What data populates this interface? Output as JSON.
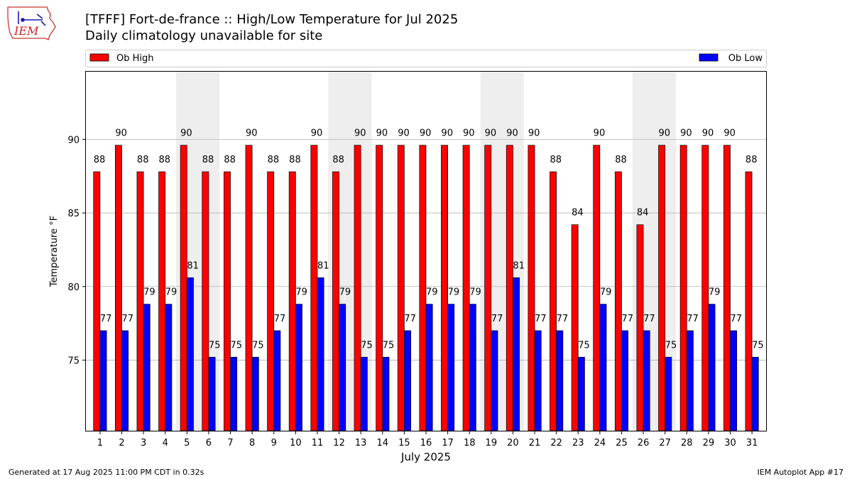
{
  "header": {
    "title": "[TFFF] Fort-de-france :: High/Low Temperature for Jul 2025",
    "subtitle": "Daily climatology unavailable for site"
  },
  "logo": {
    "text": "IEM",
    "icon": "iem-iowa-logo-icon"
  },
  "footer": {
    "generated": "Generated at 17 Aug 2025 11:00 PM CDT in 0.32s",
    "app": "IEM Autoplot App #17"
  },
  "chart_data": {
    "type": "bar",
    "categories": [
      "1",
      "2",
      "3",
      "4",
      "5",
      "6",
      "7",
      "8",
      "9",
      "10",
      "11",
      "12",
      "13",
      "14",
      "15",
      "16",
      "17",
      "18",
      "19",
      "20",
      "21",
      "22",
      "23",
      "24",
      "25",
      "26",
      "27",
      "28",
      "29",
      "30",
      "31"
    ],
    "series": [
      {
        "name": "Ob High",
        "color": "#ff0000",
        "values": [
          87.8,
          89.6,
          87.8,
          87.8,
          89.6,
          87.8,
          87.8,
          89.6,
          87.8,
          87.8,
          89.6,
          87.8,
          89.6,
          89.6,
          89.6,
          89.6,
          89.6,
          89.6,
          89.6,
          89.6,
          89.6,
          87.8,
          84.2,
          89.6,
          87.8,
          84.2,
          89.6,
          89.6,
          89.6,
          89.6,
          87.8
        ],
        "labels": [
          "88",
          "90",
          "88",
          "88",
          "90",
          "88",
          "88",
          "90",
          "88",
          "88",
          "90",
          "88",
          "90",
          "90",
          "90",
          "90",
          "90",
          "90",
          "90",
          "90",
          "90",
          "88",
          "84",
          "90",
          "88",
          "84",
          "90",
          "90",
          "90",
          "90",
          "88"
        ]
      },
      {
        "name": "Ob Low",
        "color": "#0000ff",
        "values": [
          77.0,
          77.0,
          78.8,
          78.8,
          80.6,
          75.2,
          75.2,
          75.2,
          77.0,
          78.8,
          80.6,
          78.8,
          75.2,
          75.2,
          77.0,
          78.8,
          78.8,
          78.8,
          77.0,
          80.6,
          77.0,
          77.0,
          75.2,
          78.8,
          77.0,
          77.0,
          75.2,
          77.0,
          78.8,
          77.0,
          75.2
        ],
        "labels": [
          "77",
          "77",
          "79",
          "79",
          "81",
          "75",
          "75",
          "75",
          "77",
          "79",
          "81",
          "79",
          "75",
          "75",
          "77",
          "79",
          "79",
          "79",
          "77",
          "81",
          "77",
          "77",
          "75",
          "79",
          "77",
          "77",
          "75",
          "77",
          "79",
          "77",
          "75"
        ]
      }
    ],
    "weekend_days": [
      5,
      6,
      12,
      13,
      19,
      20,
      26,
      27
    ],
    "ylim": [
      70.2,
      94.6
    ],
    "yticks": [
      75,
      80,
      85,
      90
    ],
    "xlabel": "July 2025",
    "ylabel": "Temperature °F",
    "grid": "horizontal",
    "legend": "top, spanning plot"
  }
}
